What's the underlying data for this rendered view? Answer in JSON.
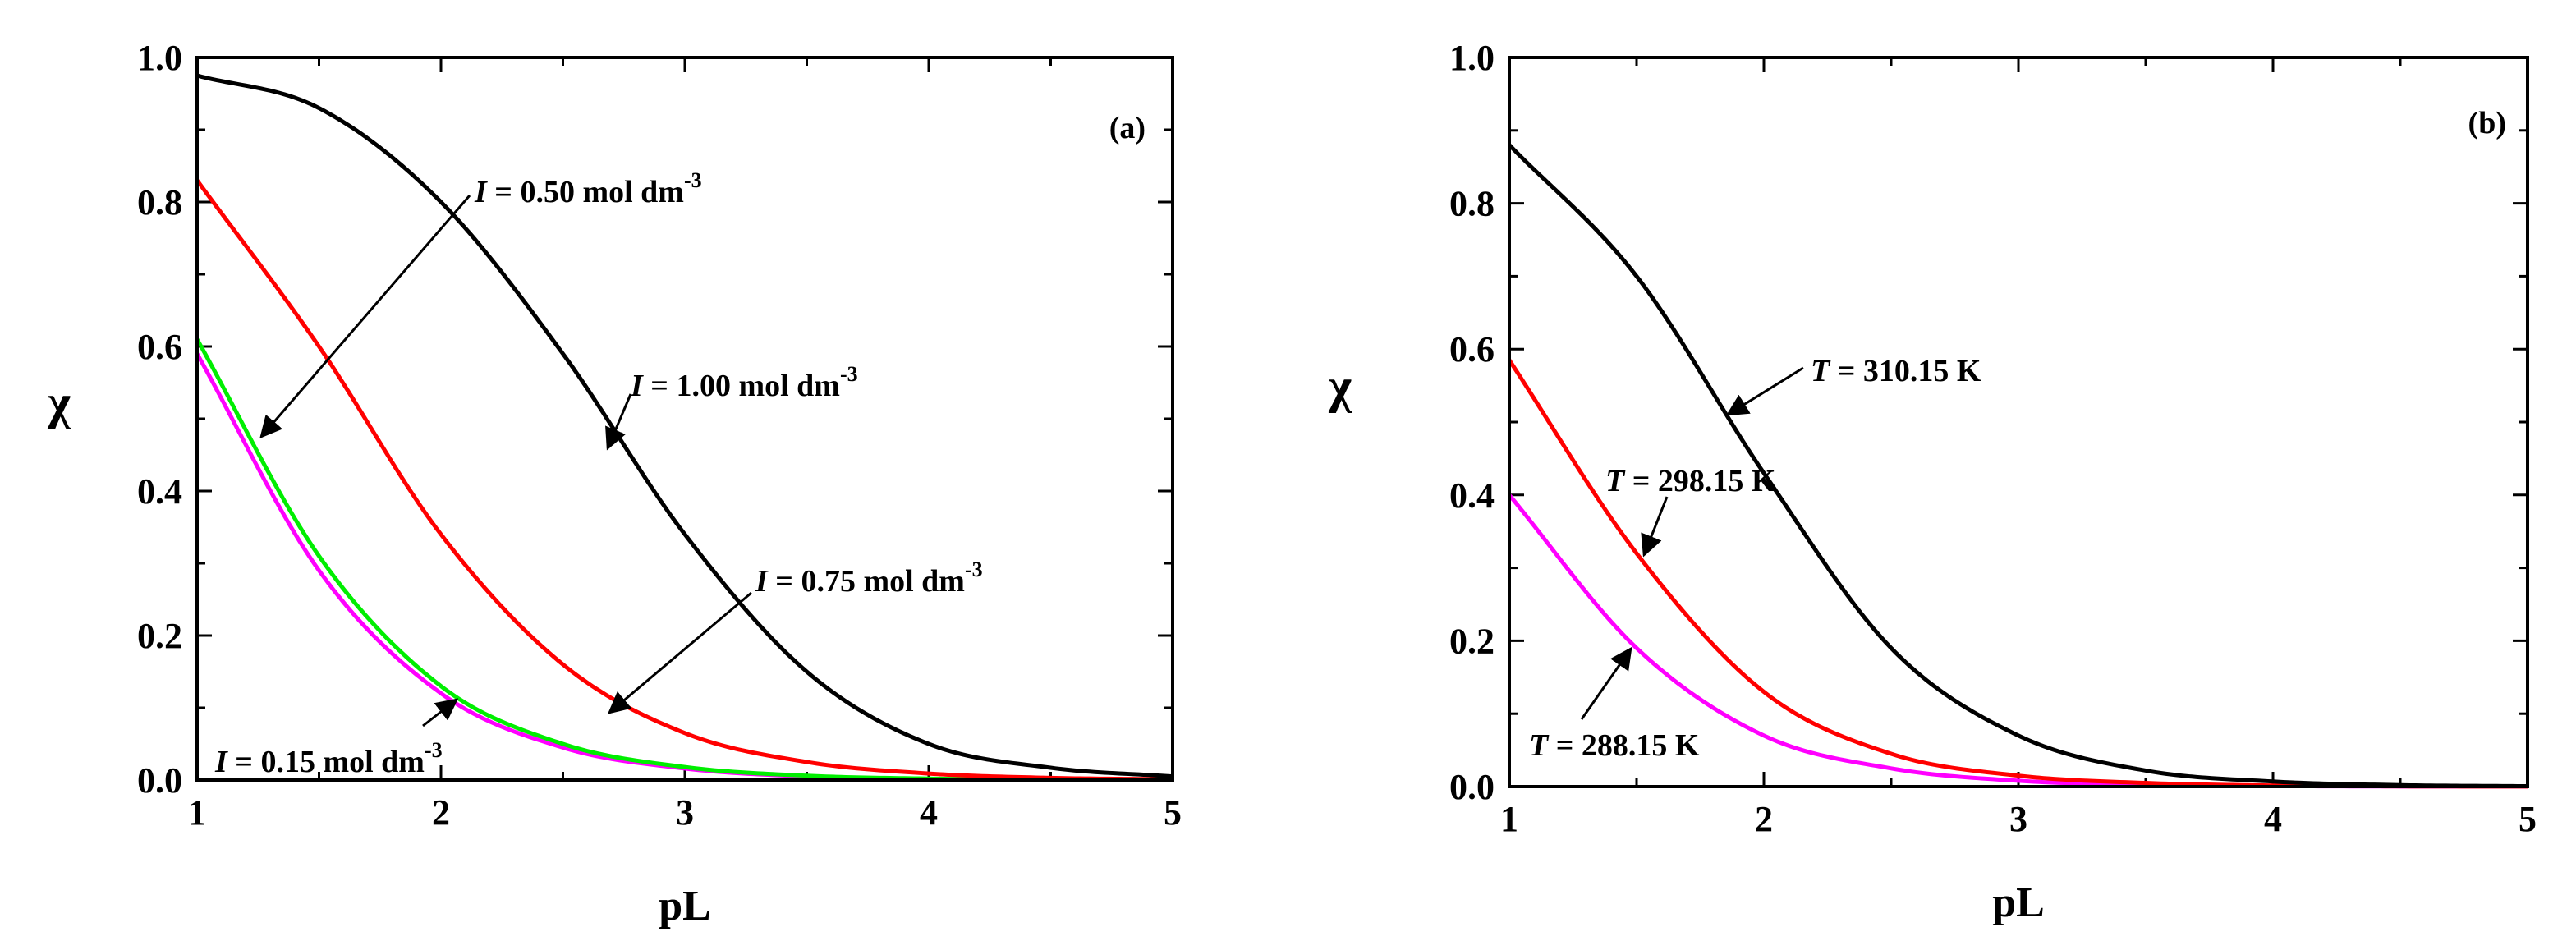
{
  "chart_data": [
    {
      "type": "line",
      "panel_label": "(a)",
      "xlabel": "pL",
      "ylabel": "χ",
      "xlim": [
        1,
        5
      ],
      "ylim": [
        0,
        1.0
      ],
      "xticks": [
        "1",
        "2",
        "3",
        "4",
        "5"
      ],
      "yticks": [
        "0.0",
        "0.2",
        "0.4",
        "0.6",
        "0.8",
        "1.0"
      ],
      "x": [
        1.0,
        1.5,
        2.0,
        2.5,
        3.0,
        3.5,
        4.0,
        4.5,
        5.0
      ],
      "series": [
        {
          "name": "I = 1.00 mol dm-3",
          "color": "#000000",
          "values": [
            0.975,
            0.93,
            0.8,
            0.59,
            0.34,
            0.15,
            0.05,
            0.017,
            0.005
          ]
        },
        {
          "name": "I = 0.75 mol dm-3",
          "color": "#ff0000",
          "values": [
            0.83,
            0.6,
            0.34,
            0.16,
            0.065,
            0.025,
            0.009,
            0.003,
            0.001
          ]
        },
        {
          "name": "I = 0.50 mol dm-3",
          "color": "#00ee00",
          "values": [
            0.61,
            0.31,
            0.13,
            0.05,
            0.018,
            0.006,
            0.002,
            0.0005,
            0.0001
          ]
        },
        {
          "name": "I = 0.15 mol dm-3",
          "color": "#ff00ff",
          "values": [
            0.59,
            0.29,
            0.12,
            0.045,
            0.016,
            0.005,
            0.0015,
            0.0004,
            0.0001
          ]
        }
      ],
      "annotations": [
        {
          "italic": "I",
          "text": " = 0.50 mol dm",
          "sup": "-3"
        },
        {
          "italic": "I",
          "text": " = 1.00 mol dm",
          "sup": "-3"
        },
        {
          "italic": "I",
          "text": " = 0.75 mol dm",
          "sup": "-3"
        },
        {
          "italic": "I",
          "text": " = 0.15 mol dm",
          "sup": "-3"
        }
      ]
    },
    {
      "type": "line",
      "panel_label": "(b)",
      "xlabel": "pL",
      "ylabel": "χ",
      "xlim": [
        1,
        5
      ],
      "ylim": [
        0,
        1.0
      ],
      "xticks": [
        "1",
        "2",
        "3",
        "4",
        "5"
      ],
      "yticks": [
        "0.0",
        "0.2",
        "0.4",
        "0.6",
        "0.8",
        "1.0"
      ],
      "x": [
        1.0,
        1.5,
        2.0,
        2.5,
        3.0,
        3.5,
        4.0,
        4.5,
        5.0
      ],
      "series": [
        {
          "name": "T = 310.15 K",
          "color": "#000000",
          "values": [
            0.88,
            0.7,
            0.43,
            0.19,
            0.07,
            0.022,
            0.007,
            0.002,
            0.0005
          ]
        },
        {
          "name": "T = 298.15 K",
          "color": "#ff0000",
          "values": [
            0.585,
            0.32,
            0.13,
            0.045,
            0.015,
            0.005,
            0.0015,
            0.0004,
            0.0001
          ]
        },
        {
          "name": "T = 288.15 K",
          "color": "#ff00ff",
          "values": [
            0.4,
            0.19,
            0.07,
            0.025,
            0.008,
            0.0025,
            0.0008,
            0.0002,
            0.0001
          ]
        }
      ],
      "annotations": [
        {
          "italic": "T",
          "text": " = 310.15 K"
        },
        {
          "italic": "T",
          "text": " = 298.15 K"
        },
        {
          "italic": "T",
          "text": " = 288.15 K"
        }
      ]
    }
  ]
}
